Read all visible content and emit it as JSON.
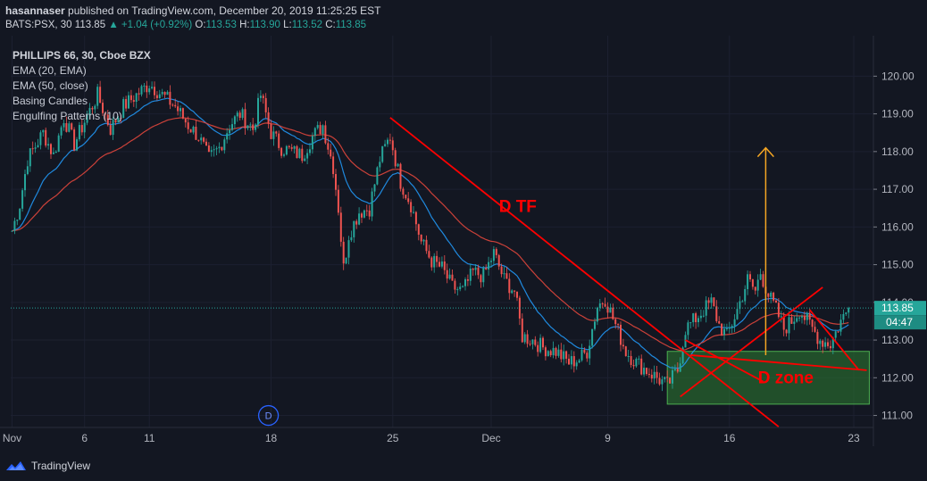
{
  "header": {
    "user": "hasannaser",
    "published": " published on TradingView.com, December 20, 2019 11:25:25 EST",
    "symbol": "BATS:PSX, 30",
    "price": "113.85",
    "change": "+1.04 (+0.92%)",
    "o_label": "O:",
    "o": "113.53",
    "h_label": "H:",
    "h": "113.90",
    "l_label": "L:",
    "l": "113.52",
    "c_label": "C:",
    "c": "113.85"
  },
  "legend": {
    "title": "PHILLIPS 66, 30, Cboe BZX",
    "items": [
      "EMA (20, EMA)",
      "EMA (50, close)",
      "Basing Candles",
      "Engulfing Patterns (10)"
    ]
  },
  "footer": {
    "brand": "TradingView"
  },
  "colors": {
    "background": "#131722",
    "up": "#26a69a",
    "down": "#ef5350",
    "ema20": "#2196f3",
    "ema50": "#e0463c",
    "annotation": "#ff0000",
    "zone": "#2e7d32",
    "arrow": "#f5a623"
  },
  "chart_data": {
    "type": "candlestick",
    "symbol": "PSX",
    "ylim": [
      110.8,
      120.6
    ],
    "y_ticks": [
      "120.00",
      "119.00",
      "118.00",
      "117.00",
      "116.00",
      "115.00",
      "114.00",
      "113.00",
      "112.00",
      "111.00"
    ],
    "x_ticks": [
      {
        "label": "Nov",
        "idx": 0
      },
      {
        "label": "6",
        "idx": 28
      },
      {
        "label": "11",
        "idx": 53
      },
      {
        "label": "18",
        "idx": 100
      },
      {
        "label": "25",
        "idx": 147
      },
      {
        "label": "Dec",
        "idx": 185
      },
      {
        "label": "9",
        "idx": 230
      },
      {
        "label": "16",
        "idx": 277
      },
      {
        "label": "23",
        "idx": 325
      }
    ],
    "n_bars": 332,
    "anchors": [
      [
        0,
        115.9
      ],
      [
        3,
        116.6
      ],
      [
        6,
        117.8
      ],
      [
        12,
        118.5
      ],
      [
        16,
        117.9
      ],
      [
        20,
        118.9
      ],
      [
        24,
        118.2
      ],
      [
        28,
        118.8
      ],
      [
        33,
        119.5
      ],
      [
        38,
        118.6
      ],
      [
        43,
        119.2
      ],
      [
        48,
        119.5
      ],
      [
        53,
        119.8
      ],
      [
        58,
        119.5
      ],
      [
        63,
        119.2
      ],
      [
        68,
        118.7
      ],
      [
        72,
        118.4
      ],
      [
        76,
        117.8
      ],
      [
        80,
        118.1
      ],
      [
        84,
        118.7
      ],
      [
        88,
        119.0
      ],
      [
        93,
        118.6
      ],
      [
        96,
        119.5
      ],
      [
        100,
        118.5
      ],
      [
        104,
        118.1
      ],
      [
        108,
        118.0
      ],
      [
        112,
        117.9
      ],
      [
        116,
        118.4
      ],
      [
        120,
        118.7
      ],
      [
        124,
        117.6
      ],
      [
        126,
        116.5
      ],
      [
        128,
        114.9
      ],
      [
        130,
        115.8
      ],
      [
        134,
        116.4
      ],
      [
        138,
        116.5
      ],
      [
        142,
        117.8
      ],
      [
        146,
        118.4
      ],
      [
        150,
        117.2
      ],
      [
        154,
        116.6
      ],
      [
        158,
        115.6
      ],
      [
        162,
        115.1
      ],
      [
        166,
        114.9
      ],
      [
        170,
        114.4
      ],
      [
        174,
        114.3
      ],
      [
        178,
        114.8
      ],
      [
        182,
        114.7
      ],
      [
        186,
        115.3
      ],
      [
        190,
        114.6
      ],
      [
        194,
        114.3
      ],
      [
        197,
        113.1
      ],
      [
        201,
        113.0
      ],
      [
        205,
        112.8
      ],
      [
        210,
        112.7
      ],
      [
        215,
        112.4
      ],
      [
        219,
        112.5
      ],
      [
        222,
        112.7
      ],
      [
        226,
        113.9
      ],
      [
        229,
        114.1
      ],
      [
        233,
        113.4
      ],
      [
        237,
        112.7
      ],
      [
        241,
        112.4
      ],
      [
        245,
        112.2
      ],
      [
        249,
        112.0
      ],
      [
        253,
        111.8
      ],
      [
        257,
        112.2
      ],
      [
        260,
        113.3
      ],
      [
        263,
        113.5
      ],
      [
        267,
        113.8
      ],
      [
        270,
        114.0
      ],
      [
        273,
        113.4
      ],
      [
        276,
        113.1
      ],
      [
        280,
        113.8
      ],
      [
        284,
        114.6
      ],
      [
        287,
        114.3
      ],
      [
        289,
        114.8
      ],
      [
        292,
        114.2
      ],
      [
        295,
        113.8
      ],
      [
        298,
        113.3
      ],
      [
        301,
        113.5
      ],
      [
        304,
        113.8
      ],
      [
        308,
        113.4
      ],
      [
        312,
        113.0
      ],
      [
        316,
        112.9
      ],
      [
        320,
        113.5
      ],
      [
        323,
        113.85
      ]
    ],
    "series": [
      {
        "name": "EMA (20, EMA)",
        "period": 20
      },
      {
        "name": "EMA (50, close)",
        "period": 50
      }
    ],
    "last_price": 113.85,
    "countdown": "04:47",
    "annotations": [
      {
        "type": "line",
        "from": {
          "idx": 146,
          "price": 118.9
        },
        "to": {
          "idx": 296,
          "price": 110.7
        }
      },
      {
        "type": "line",
        "from": {
          "idx": 258,
          "price": 111.5
        },
        "to": {
          "idx": 313,
          "price": 114.4
        }
      },
      {
        "type": "line",
        "from": {
          "idx": 262,
          "price": 112.6
        },
        "to": {
          "idx": 330,
          "price": 112.2
        }
      },
      {
        "type": "line",
        "from": {
          "idx": 260,
          "price": 113.0
        },
        "to": {
          "idx": 290,
          "price": 111.9
        }
      },
      {
        "type": "line",
        "from": {
          "idx": 308,
          "price": 113.8
        },
        "to": {
          "idx": 327,
          "price": 112.2
        }
      },
      {
        "type": "zone",
        "x0_idx": 253,
        "x1_idx": 331,
        "y0": 111.3,
        "y1": 112.7
      },
      {
        "type": "arrow",
        "idx": 291,
        "from_price": 112.6,
        "to_price": 118.1
      },
      {
        "type": "text",
        "text": "D TF",
        "idx": 188,
        "price": 116.4
      },
      {
        "type": "text",
        "text": "D zone",
        "idx": 288,
        "price": 111.85
      },
      {
        "type": "badge",
        "text": "D",
        "idx": 99,
        "price": 111.0
      }
    ]
  }
}
